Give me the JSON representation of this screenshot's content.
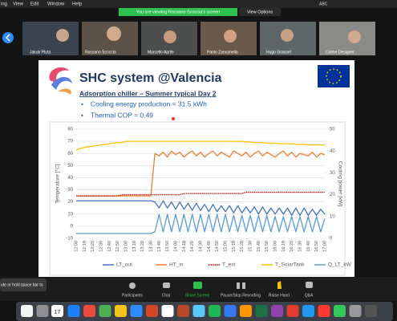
{
  "menu": {
    "items": [
      "ing",
      "View",
      "Edit",
      "Window",
      "Help"
    ],
    "input_source": "ABC"
  },
  "banner": {
    "text": "You are viewing Rossano Scoccia's screen",
    "options": "View Options"
  },
  "participants": [
    "Jakub Pluta",
    "Rossano Scoccia",
    "Marcello Aprile",
    "Paolo Zancanella",
    "Hugo Grasset",
    "Colme Designer"
  ],
  "slide": {
    "title": "SHC system @Valencia",
    "subtitle": "Adsorption chiller – Summer typical Day 2",
    "bullets": [
      "Cooling energy production = 31.5 kWh",
      "Thermal COP = 0.49"
    ]
  },
  "chart_data": {
    "type": "line",
    "ylabel": "Temperature [°C]",
    "y2label": "Cooling power [kW]",
    "ylim": [
      -10,
      80
    ],
    "yticks": [
      -10,
      0,
      10,
      20,
      30,
      40,
      50,
      60,
      70,
      80
    ],
    "y2lim": [
      0,
      50
    ],
    "y2ticks": [
      0,
      10,
      20,
      30,
      40,
      50
    ],
    "grid": true,
    "legend": "bottom",
    "categories": [
      "12:00",
      null,
      "12:10",
      null,
      "12:20",
      null,
      "12:30",
      null,
      "12:40",
      null,
      "12:50",
      null,
      "13:00",
      null,
      "13:10",
      null,
      "13:20",
      null,
      "13:30",
      null,
      "13:40",
      null,
      "13:50",
      null,
      "14:00",
      null,
      "14:10",
      null,
      "14:20",
      null,
      "14:30",
      null,
      "14:40",
      null,
      "14:50",
      null,
      "15:00",
      null,
      "15:10",
      null,
      "15:20",
      null,
      "15:30",
      null,
      "15:40",
      null,
      "15:50",
      null,
      "16:00",
      null,
      "16:10",
      null,
      "16:20",
      null,
      "16:30",
      null,
      "16:40",
      null,
      "16:50",
      null,
      "17:00"
    ],
    "series": [
      {
        "name": "LT_out",
        "color": "#4472c4",
        "values": [
          21,
          21,
          21,
          21,
          21,
          21,
          21,
          21,
          21,
          21,
          21,
          21,
          21,
          21,
          21,
          21,
          21,
          21,
          21,
          20,
          15,
          21,
          15,
          20,
          14,
          20,
          14,
          19,
          13,
          19,
          13,
          18,
          12,
          18,
          12,
          17,
          12,
          17,
          11,
          17,
          11,
          16,
          11,
          16,
          10,
          16,
          10,
          15,
          10,
          15,
          10,
          15,
          9,
          15,
          9,
          15,
          9,
          14,
          9,
          14,
          10
        ]
      },
      {
        "name": "HT_in",
        "color": "#ed7d31",
        "values": [
          25,
          25,
          25,
          25,
          25,
          25,
          25,
          25,
          25,
          25,
          25,
          25,
          25,
          25,
          25,
          25,
          25,
          25,
          25,
          60,
          58,
          61,
          57,
          62,
          59,
          61,
          57,
          60,
          62,
          58,
          61,
          57,
          60,
          62,
          58,
          61,
          59,
          57,
          62,
          60,
          58,
          61,
          57,
          60,
          62,
          58,
          61,
          59,
          57,
          60,
          62,
          58,
          61,
          57,
          60,
          59,
          58,
          61,
          57,
          60,
          59
        ]
      },
      {
        "name": "T_ext",
        "color": "#c00000",
        "dashed": true,
        "values": [
          25,
          25,
          25,
          25,
          25,
          25,
          25,
          25,
          25,
          25,
          25,
          26,
          26,
          26,
          26,
          26,
          26,
          26,
          26,
          26,
          26,
          26,
          26,
          26,
          26,
          26,
          27,
          27,
          27,
          27,
          27,
          27,
          27,
          27,
          27,
          27,
          27,
          27,
          27,
          27,
          27,
          28,
          28,
          28,
          28,
          28,
          28,
          28,
          28,
          28,
          28,
          28,
          28,
          28,
          28,
          28,
          28,
          28,
          28,
          28,
          28
        ]
      },
      {
        "name": "T_SolarTank",
        "color": "#ffc000",
        "values": [
          63,
          64,
          65,
          65.5,
          66,
          66.5,
          67,
          67.5,
          68,
          68.5,
          69,
          69,
          70,
          70,
          70,
          70,
          70,
          70,
          70,
          70,
          70,
          70,
          70,
          70,
          70,
          70,
          70,
          70,
          70,
          70,
          70,
          70,
          70,
          70,
          70,
          70,
          70,
          70,
          70,
          70,
          70,
          69.5,
          69.5,
          69,
          69,
          69,
          68.5,
          68.5,
          68.5,
          68,
          68,
          68,
          68,
          67.5,
          67.5,
          67.5,
          67,
          67,
          67,
          67,
          67
        ]
      },
      {
        "name": "Q_LT_kW",
        "color": "#5b9bd5",
        "axis": "y2",
        "values": [
          2.2,
          2.2,
          2.2,
          2.2,
          2.2,
          2.2,
          2.2,
          2.2,
          2.2,
          2.2,
          2.2,
          2.2,
          2.2,
          2.2,
          2.2,
          2.2,
          2.2,
          2.2,
          2.2,
          3,
          11,
          3,
          11,
          3,
          11,
          3,
          11,
          3,
          11,
          3,
          11,
          3,
          11,
          3,
          11,
          3,
          11,
          3,
          10.5,
          3,
          10.5,
          3,
          10.5,
          3,
          10.5,
          3,
          10.5,
          3,
          10,
          3,
          10,
          3,
          10,
          3,
          10,
          3,
          10,
          3,
          10,
          3,
          9
        ]
      }
    ]
  },
  "toolbar": {
    "items": [
      "Participants",
      "Chat",
      "Share Screen",
      "Pause/Stop Recording",
      "Raise Hand",
      "Q&A"
    ],
    "tooltip": "ute or hold space bar to"
  },
  "dock": {
    "calendar_day": "17"
  }
}
